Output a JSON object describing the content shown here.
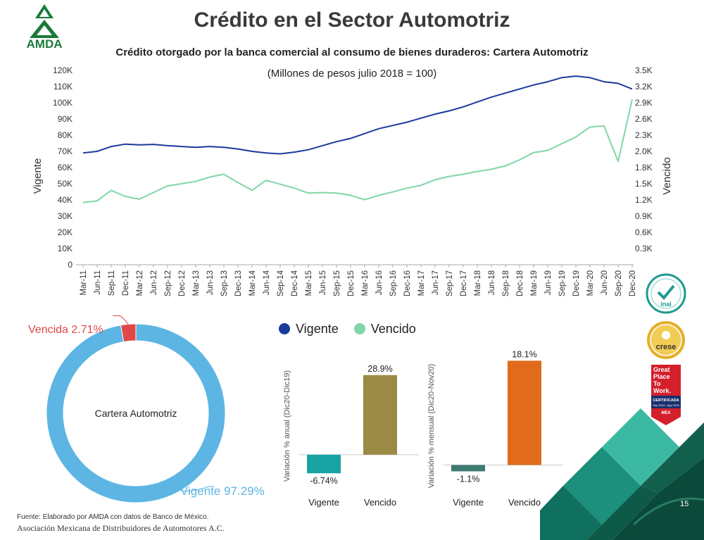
{
  "header": {
    "logo_text": "AMDA",
    "title": "Crédito en el Sector Automotriz",
    "subtitle": "Crédito otorgado por la banca comercial al consumo de bienes duraderos: Cartera Automotriz",
    "subtitle2": "(Millones de pesos julio 2018 = 100)"
  },
  "colors": {
    "vigente": "#1a3a9c",
    "vencido": "#7fd6a6",
    "donut_vigente": "#5db5e4",
    "donut_vencida": "#e04848",
    "bar_neg_anual": "#1aa3a3",
    "bar_pos_anual": "#9a8a45",
    "bar_neg_mensual": "#3d7a70",
    "bar_pos_mensual": "#e06b1c"
  },
  "chart_data": [
    {
      "type": "line",
      "title": "Crédito otorgado por la banca comercial al consumo de bienes duraderos: Cartera Automotriz",
      "subtitle": "(Millones de pesos julio 2018 = 100)",
      "ylabel_left": "Vigente",
      "ylabel_right": "Vencido",
      "ylim_left": [
        0,
        120000
      ],
      "ylim_right": [
        0,
        3500
      ],
      "yticks_left": [
        "0",
        "10K",
        "20K",
        "30K",
        "40K",
        "50K",
        "60K",
        "70K",
        "80K",
        "90K",
        "100K",
        "110K",
        "120K"
      ],
      "yticks_right": [
        "0.3K",
        "0.6K",
        "0.9K",
        "1.2K",
        "1.5K",
        "1.8K",
        "2.0K",
        "2.3K",
        "2.6K",
        "2.9K",
        "3.2K",
        "3.5K"
      ],
      "x_labels": [
        "Mar-11",
        "Jun-11",
        "Sep-11",
        "Dec-11",
        "Mar-12",
        "Jun-12",
        "Sep-12",
        "Dec-12",
        "Mar-13",
        "Jun-13",
        "Sep-13",
        "Dec-13",
        "Mar-14",
        "Jun-14",
        "Sep-14",
        "Dec-14",
        "Mar-15",
        "Jun-15",
        "Sep-15",
        "Dec-15",
        "Mar-16",
        "Jun-16",
        "Sep-16",
        "Dec-16",
        "Mar-17",
        "Jun-17",
        "Sep-17",
        "Dec-17",
        "Mar-18",
        "Jun-18",
        "Sep-18",
        "Dec-18",
        "Mar-19",
        "Jun-19",
        "Sep-19",
        "Dec-19",
        "Mar-20",
        "Jun-20",
        "Sep-20",
        "Dec-20"
      ],
      "series": [
        {
          "name": "Vigente",
          "axis": "left",
          "values": [
            69000,
            70000,
            73000,
            74500,
            74000,
            74300,
            73500,
            73000,
            72500,
            73000,
            72500,
            71500,
            70000,
            69000,
            68500,
            69500,
            71000,
            73500,
            76000,
            78000,
            81000,
            84000,
            86000,
            88000,
            90500,
            93000,
            95000,
            97500,
            100500,
            103500,
            106000,
            108500,
            111000,
            113000,
            115500,
            116500,
            115500,
            113000,
            112000,
            108500
          ]
        },
        {
          "name": "Vencido",
          "axis": "right",
          "values": [
            1120,
            1150,
            1340,
            1230,
            1180,
            1300,
            1420,
            1460,
            1500,
            1580,
            1630,
            1480,
            1340,
            1520,
            1450,
            1380,
            1290,
            1300,
            1290,
            1250,
            1170,
            1250,
            1310,
            1380,
            1430,
            1530,
            1590,
            1630,
            1680,
            1720,
            1780,
            1890,
            2020,
            2060,
            2180,
            2300,
            2480,
            2500,
            1860,
            2980
          ]
        }
      ]
    },
    {
      "type": "pie",
      "center_label": "Cartera Automotriz",
      "slices": [
        {
          "name": "Vigente",
          "value": 97.29,
          "label": "Vigente 97.29%"
        },
        {
          "name": "Vencida",
          "value": 2.71,
          "label": "Vencida 2.71%"
        }
      ]
    },
    {
      "type": "bar",
      "ylabel": "Variación % anual (Dic20-Dic19)",
      "categories": [
        "Vigente",
        "Vencido"
      ],
      "values": [
        -6.74,
        28.9
      ],
      "value_labels": [
        "-6.74%",
        "28.9%"
      ]
    },
    {
      "type": "bar",
      "ylabel": "Variación % mensual (Dic20-Nov20)",
      "categories": [
        "Vigente",
        "Vencido"
      ],
      "values": [
        -1.1,
        18.1
      ],
      "value_labels": [
        "-1.1%",
        "18.1%"
      ]
    }
  ],
  "legend": [
    {
      "name": "Vigente",
      "color": "#1a3a9c"
    },
    {
      "name": "Vencido",
      "color": "#7fd6a6"
    }
  ],
  "certifications": {
    "inai": "inai",
    "crese": "crese",
    "gptw_lines": [
      "Great",
      "Place",
      "To",
      "Work."
    ],
    "gptw_cert": "CERTIFICADA",
    "gptw_period": "Sep 2019 - Ago 2020",
    "gptw_country": "MEX"
  },
  "footer": {
    "source": "Fuente: Elaborado por AMDA con datos de Banco de México.",
    "org": "Asociación Mexicana de Distribuidores de Automotores A.C.",
    "page": "15"
  }
}
